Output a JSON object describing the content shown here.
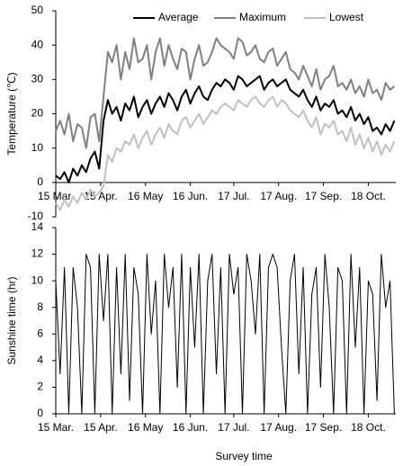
{
  "chart_data": [
    {
      "type": "line",
      "ylabel": "Temperature (℃)",
      "legend": "top-right",
      "xlim": [
        0,
        235
      ],
      "ylim": [
        -10,
        50
      ],
      "yticks": [
        -10,
        0,
        10,
        20,
        30,
        40,
        50
      ],
      "xticks": [
        {
          "value": 0,
          "label": "15 Mar."
        },
        {
          "value": 31,
          "label": "15 Apr."
        },
        {
          "value": 62,
          "label": "16 May"
        },
        {
          "value": 93,
          "label": "16 Jun."
        },
        {
          "value": 123,
          "label": "17 Jul."
        },
        {
          "value": 154,
          "label": "17 Aug."
        },
        {
          "value": 185,
          "label": "17 Sep."
        },
        {
          "value": 216,
          "label": "18 Oct."
        }
      ],
      "x": [
        0,
        3,
        6,
        9,
        12,
        15,
        18,
        21,
        24,
        27,
        30,
        33,
        36,
        39,
        42,
        45,
        48,
        51,
        54,
        57,
        60,
        63,
        66,
        69,
        72,
        75,
        78,
        81,
        84,
        87,
        90,
        93,
        96,
        99,
        102,
        105,
        108,
        111,
        114,
        117,
        120,
        123,
        126,
        129,
        132,
        135,
        138,
        141,
        144,
        147,
        150,
        153,
        156,
        159,
        162,
        165,
        168,
        171,
        174,
        177,
        180,
        183,
        186,
        189,
        192,
        195,
        198,
        201,
        204,
        207,
        210,
        213,
        216,
        219,
        222,
        225,
        228,
        231,
        234
      ],
      "series": [
        {
          "name": "Average",
          "color": "#000000",
          "width": 2,
          "values": [
            2,
            1,
            3,
            0,
            4,
            2,
            5,
            3,
            7,
            9,
            4,
            18,
            24,
            20,
            22,
            18,
            23,
            21,
            25,
            19,
            22,
            24,
            20,
            23,
            25,
            22,
            26,
            24,
            21,
            25,
            27,
            23,
            26,
            28,
            25,
            24,
            27,
            29,
            28,
            30,
            29,
            27,
            31,
            30,
            28,
            29,
            30,
            31,
            27,
            29,
            30,
            28,
            29,
            30,
            27,
            26,
            25,
            27,
            24,
            22,
            25,
            21,
            23,
            22,
            24,
            20,
            21,
            19,
            22,
            18,
            20,
            17,
            19,
            15,
            16,
            14,
            17,
            15,
            18
          ]
        },
        {
          "name": "Maximum",
          "color": "#808080",
          "width": 2,
          "values": [
            15,
            18,
            14,
            20,
            12,
            17,
            16,
            10,
            19,
            20,
            12,
            25,
            38,
            35,
            40,
            30,
            38,
            33,
            42,
            35,
            36,
            40,
            30,
            38,
            42,
            34,
            40,
            36,
            33,
            39,
            38,
            30,
            36,
            40,
            34,
            35,
            38,
            42,
            40,
            39,
            38,
            36,
            42,
            41,
            37,
            38,
            40,
            36,
            35,
            38,
            39,
            34,
            36,
            38,
            33,
            32,
            30,
            34,
            31,
            28,
            33,
            27,
            30,
            31,
            34,
            28,
            29,
            27,
            30,
            26,
            28,
            25,
            30,
            26,
            27,
            24,
            29,
            27,
            28
          ]
        },
        {
          "name": "Lowest",
          "color": "#c0c0c0",
          "width": 2,
          "values": [
            -6,
            -8,
            -5,
            -7,
            -4,
            -6,
            -3,
            -5,
            -2,
            -4,
            -3,
            -1,
            8,
            6,
            10,
            9,
            12,
            11,
            14,
            10,
            13,
            15,
            11,
            14,
            16,
            13,
            17,
            15,
            14,
            18,
            19,
            16,
            18,
            20,
            17,
            19,
            21,
            20,
            22,
            23,
            22,
            21,
            24,
            23,
            22,
            24,
            25,
            23,
            22,
            24,
            25,
            22,
            24,
            23,
            21,
            20,
            19,
            21,
            18,
            16,
            19,
            14,
            17,
            16,
            18,
            14,
            15,
            12,
            16,
            11,
            14,
            10,
            13,
            9,
            12,
            8,
            11,
            9,
            12
          ]
        }
      ]
    },
    {
      "type": "line",
      "ylabel": "Sunshine time (hr)",
      "xlabel": "Survey time",
      "xlim": [
        0,
        235
      ],
      "ylim": [
        0,
        14
      ],
      "yticks": [
        0,
        2,
        4,
        6,
        8,
        10,
        12,
        14
      ],
      "xticks": [
        {
          "value": 0,
          "label": "15 Mar."
        },
        {
          "value": 31,
          "label": "15 Apr."
        },
        {
          "value": 62,
          "label": "16 May"
        },
        {
          "value": 93,
          "label": "16 Jun."
        },
        {
          "value": 123,
          "label": "17 Jul."
        },
        {
          "value": 154,
          "label": "17 Aug."
        },
        {
          "value": 185,
          "label": "17 Sep."
        },
        {
          "value": 216,
          "label": "18 Oct."
        }
      ],
      "x": [
        0,
        3,
        6,
        9,
        12,
        15,
        18,
        21,
        24,
        27,
        30,
        33,
        36,
        39,
        42,
        45,
        48,
        51,
        54,
        57,
        60,
        63,
        66,
        69,
        72,
        75,
        78,
        81,
        84,
        87,
        90,
        93,
        96,
        99,
        102,
        105,
        108,
        111,
        114,
        117,
        120,
        123,
        126,
        129,
        132,
        135,
        138,
        141,
        144,
        147,
        150,
        153,
        156,
        159,
        162,
        165,
        168,
        171,
        174,
        177,
        180,
        183,
        186,
        189,
        192,
        195,
        198,
        201,
        204,
        207,
        210,
        213,
        216,
        219,
        222,
        225,
        228,
        231,
        234
      ],
      "color": "#000000",
      "values": [
        10,
        3,
        11,
        0,
        11,
        8,
        0,
        12,
        11,
        0,
        12,
        7,
        12,
        0,
        11,
        3,
        12,
        1,
        11,
        9,
        0,
        12,
        6,
        10,
        0,
        12,
        8,
        11,
        2,
        12,
        0,
        11,
        5,
        12,
        0,
        10,
        12,
        3,
        11,
        0,
        12,
        9,
        11,
        0,
        12,
        10,
        6,
        12,
        0,
        11,
        12,
        11,
        5,
        0,
        10,
        12,
        3,
        11,
        0,
        9,
        11,
        2,
        12,
        8,
        0,
        11,
        10,
        0,
        12,
        5,
        11,
        0,
        10,
        9,
        1,
        12,
        8,
        10,
        0
      ]
    }
  ]
}
